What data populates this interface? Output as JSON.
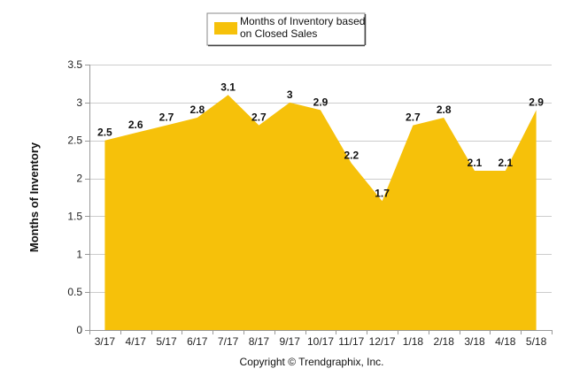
{
  "chart_data": {
    "type": "area",
    "categories": [
      "3/17",
      "4/17",
      "5/17",
      "6/17",
      "7/17",
      "8/17",
      "9/17",
      "10/17",
      "11/17",
      "12/17",
      "1/18",
      "2/18",
      "3/18",
      "4/18",
      "5/18"
    ],
    "series": [
      {
        "name": "Months of Inventory based on Closed Sales",
        "values": [
          2.5,
          2.6,
          2.7,
          2.8,
          3.1,
          2.7,
          3,
          2.9,
          2.2,
          1.7,
          2.7,
          2.8,
          2.1,
          2.1,
          2.9
        ],
        "labels": [
          "2.5",
          "2.6",
          "2.7",
          "2.8",
          "3.1",
          "2.7",
          "3",
          "2.9",
          "2.2",
          "1.7",
          "2.7",
          "2.8",
          "2.1",
          "2.1",
          "2.9"
        ],
        "color": "#F6C10A"
      }
    ],
    "title": "",
    "xlabel": "",
    "ylabel": "Months of Inventory",
    "ylim": [
      0,
      3.5
    ],
    "yticks": [
      "0",
      "0.5",
      "1",
      "1.5",
      "2",
      "2.5",
      "3",
      "3.5"
    ],
    "grid": true,
    "legend_position": "top-center",
    "legend_lines": [
      "Months of Inventory based",
      "on Closed Sales"
    ],
    "footer": "Copyright © Trendgraphix, Inc."
  }
}
